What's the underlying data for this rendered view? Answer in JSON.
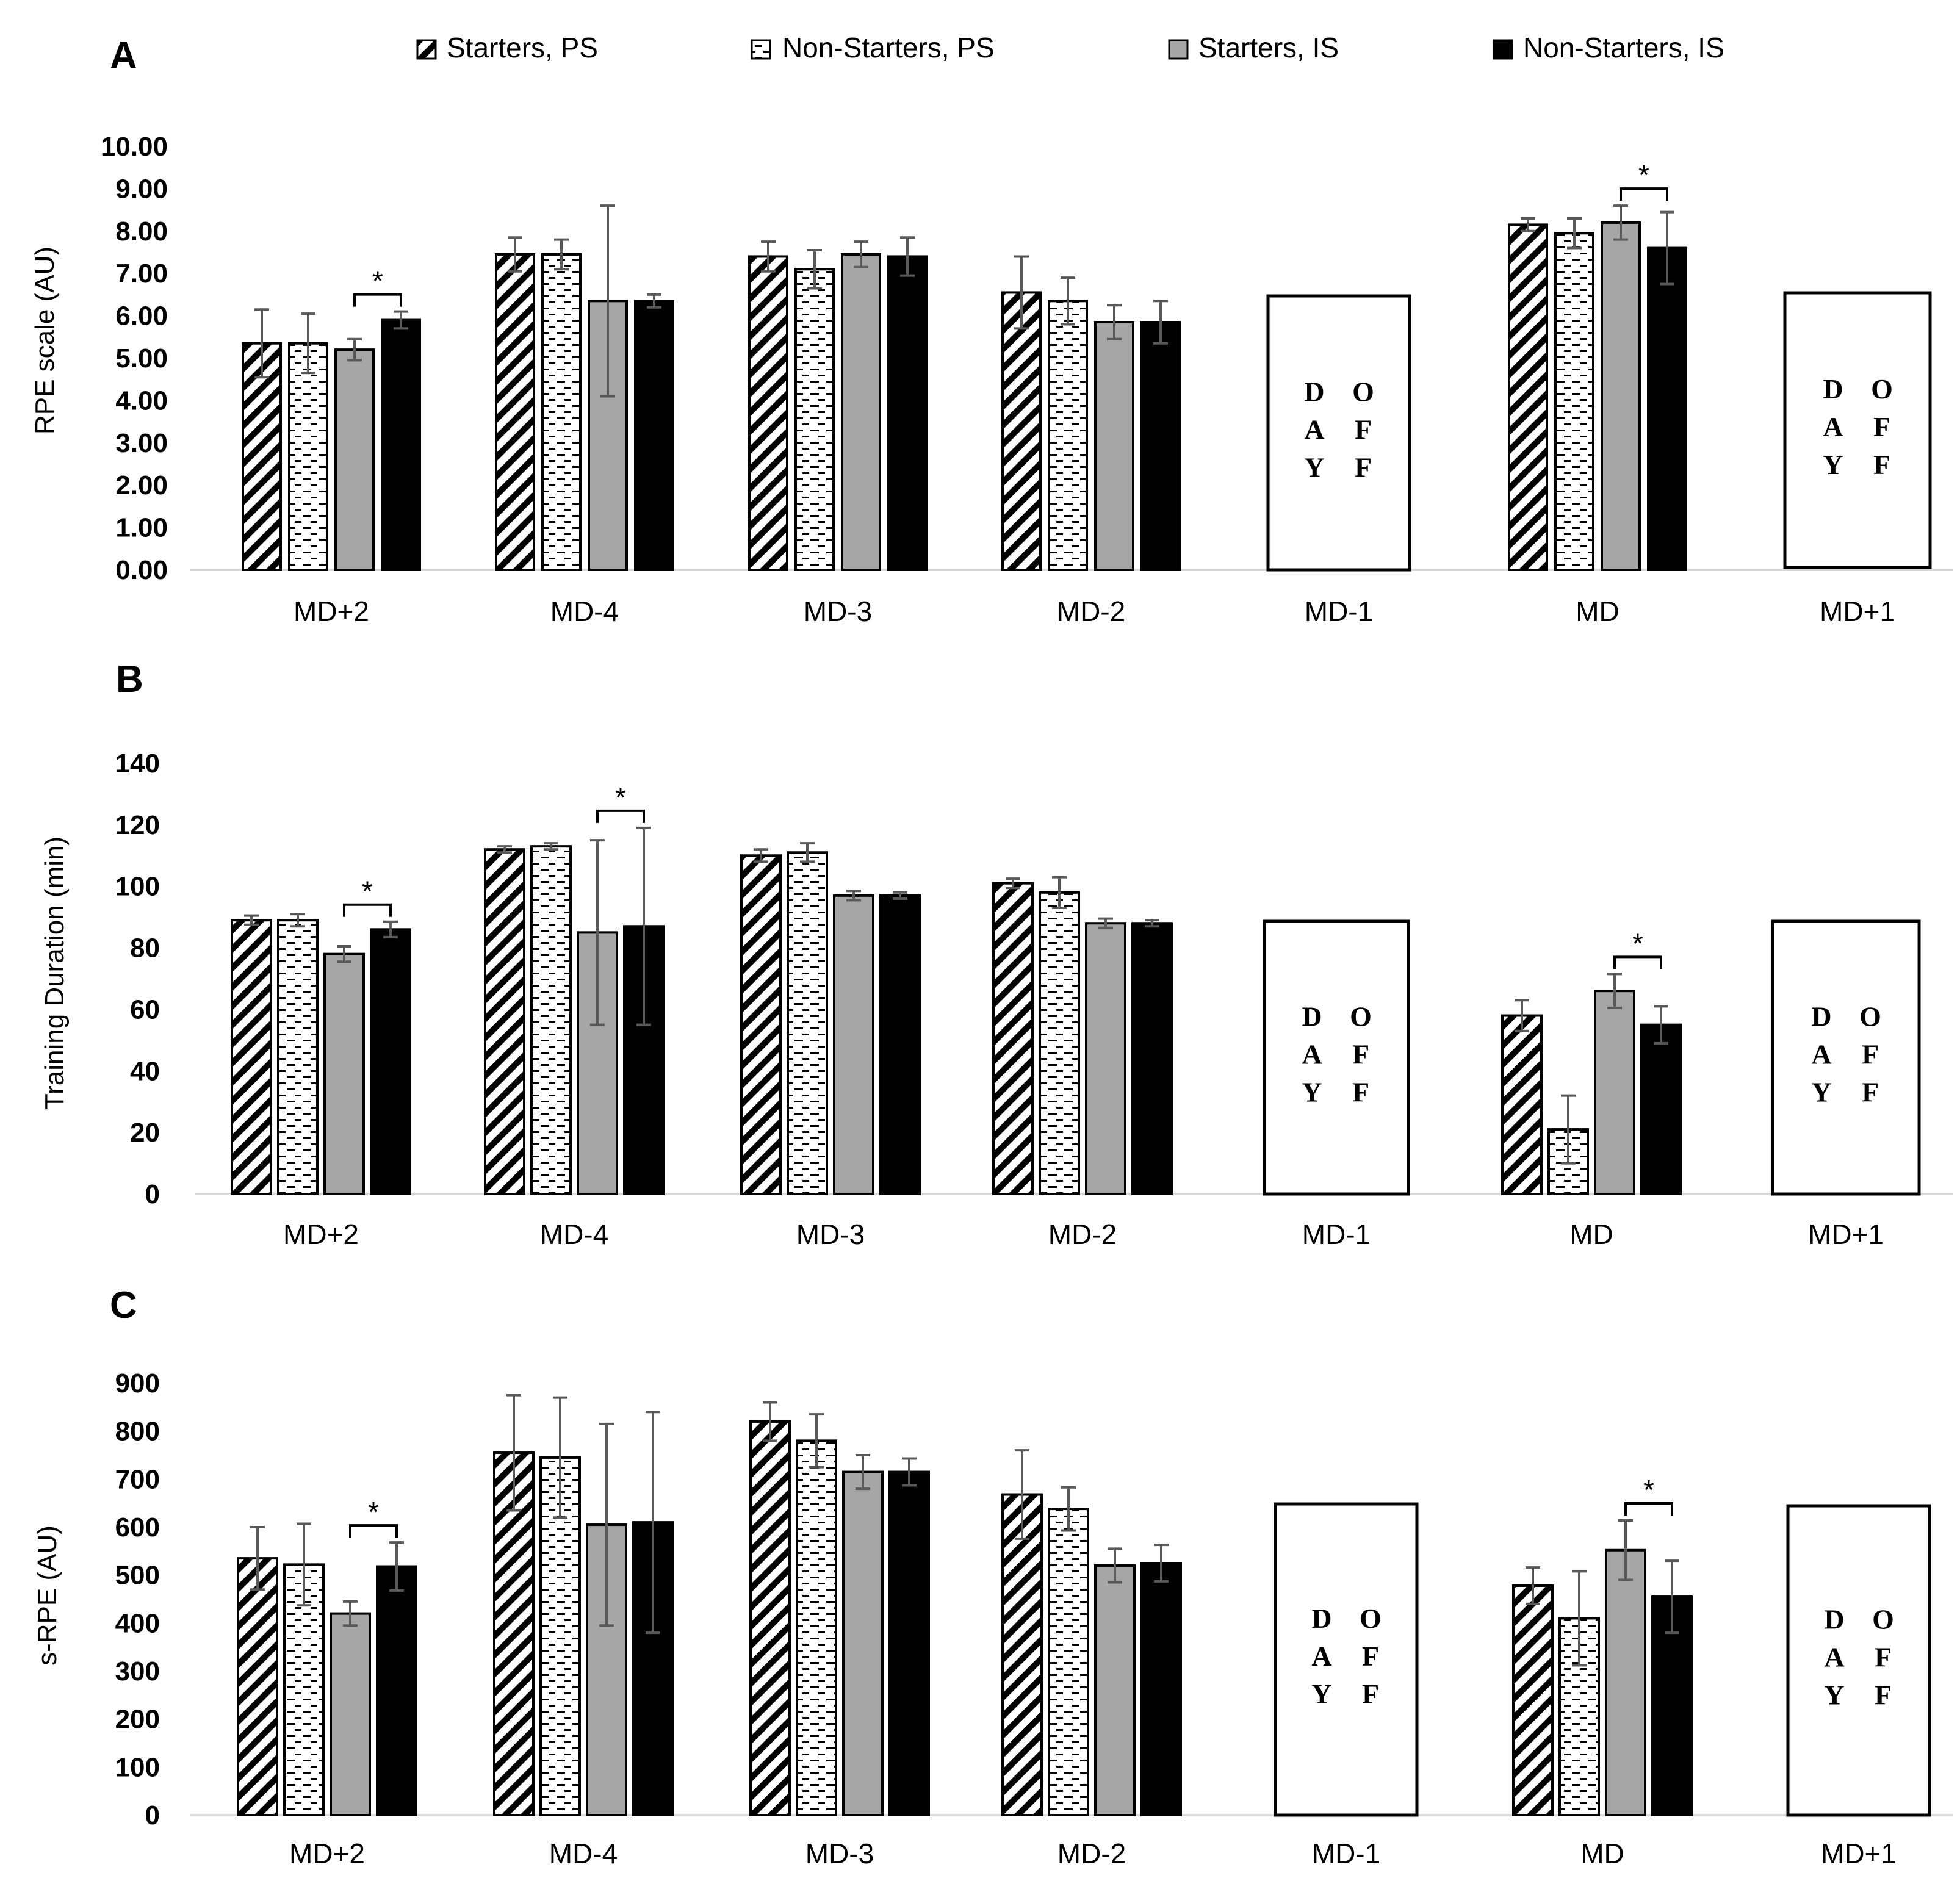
{
  "legend": {
    "items": [
      {
        "label": "Starters, PS",
        "pattern": "diag"
      },
      {
        "label": "Non-Starters, PS",
        "pattern": "dash"
      },
      {
        "label": "Starters, IS",
        "pattern": "gray"
      },
      {
        "label": "Non-Starters, IS",
        "pattern": "black"
      }
    ]
  },
  "colors": {
    "gray_bar": "#a6a6a6",
    "black_bar": "#000000",
    "error_bar": "#595959",
    "axis_line": "#d9d9d9"
  },
  "off_label": [
    "D",
    "O",
    "A",
    "F",
    "Y",
    "F"
  ],
  "chart_data": [
    {
      "type": "bar",
      "panel": "A",
      "ylabel": "RPE scale (AU)",
      "xlabel": "",
      "categories": [
        "MD+2",
        "MD-4",
        "MD-3",
        "MD-2",
        "MD-1",
        "MD",
        "MD+1"
      ],
      "ylim": [
        0,
        10
      ],
      "yticks": [
        "0.00",
        "1.00",
        "2.00",
        "3.00",
        "4.00",
        "5.00",
        "6.00",
        "7.00",
        "8.00",
        "9.00",
        "10.00"
      ],
      "day_off": [
        "MD-1",
        "MD+1"
      ],
      "series": [
        {
          "name": "Starters, PS",
          "values": [
            5.35,
            7.45,
            7.4,
            6.55,
            null,
            8.15,
            null
          ],
          "errors": [
            0.8,
            0.4,
            0.35,
            0.85,
            null,
            0.15,
            null
          ]
        },
        {
          "name": "Non-Starters, PS",
          "values": [
            5.35,
            7.45,
            7.1,
            6.35,
            null,
            7.95,
            null
          ],
          "errors": [
            0.7,
            0.35,
            0.45,
            0.55,
            null,
            0.35,
            null
          ]
        },
        {
          "name": "Starters, IS",
          "values": [
            5.2,
            6.35,
            7.45,
            5.85,
            null,
            8.2,
            null
          ],
          "errors": [
            0.25,
            2.25,
            0.3,
            0.4,
            null,
            0.4,
            null
          ]
        },
        {
          "name": "Non-Starters, IS",
          "values": [
            5.9,
            6.35,
            7.4,
            5.85,
            null,
            7.6,
            null
          ],
          "errors": [
            0.2,
            0.15,
            0.45,
            0.5,
            null,
            0.85,
            null
          ]
        }
      ],
      "significance": [
        {
          "category": "MD+2",
          "between": [
            "Starters, IS",
            "Non-Starters, IS"
          ],
          "label": "*"
        },
        {
          "category": "MD",
          "between": [
            "Starters, IS",
            "Non-Starters, IS"
          ],
          "label": "*"
        }
      ]
    },
    {
      "type": "bar",
      "panel": "B",
      "ylabel": "Training Duration (min)",
      "xlabel": "",
      "categories": [
        "MD+2",
        "MD-4",
        "MD-3",
        "MD-2",
        "MD-1",
        "MD",
        "MD+1"
      ],
      "ylim": [
        0,
        140
      ],
      "yticks": [
        "0",
        "20",
        "40",
        "60",
        "80",
        "100",
        "120",
        "140"
      ],
      "day_off": [
        "MD-1",
        "MD+1"
      ],
      "series": [
        {
          "name": "Starters, PS",
          "values": [
            89,
            112,
            110,
            101,
            null,
            58,
            null
          ],
          "errors": [
            1.5,
            1.0,
            2.0,
            1.5,
            null,
            5.0,
            null
          ]
        },
        {
          "name": "Non-Starters, PS",
          "values": [
            89,
            113,
            111,
            98,
            null,
            21,
            null
          ],
          "errors": [
            2.0,
            1.0,
            3.0,
            5.0,
            null,
            11.0,
            null
          ]
        },
        {
          "name": "Starters, IS",
          "values": [
            78,
            85,
            97,
            88,
            null,
            66,
            null
          ],
          "errors": [
            2.5,
            30.0,
            1.5,
            1.5,
            null,
            5.5,
            null
          ]
        },
        {
          "name": "Non-Starters, IS",
          "values": [
            86,
            87,
            97,
            88,
            null,
            55,
            null
          ],
          "errors": [
            2.5,
            32.0,
            1.0,
            1.0,
            null,
            6.0,
            null
          ]
        }
      ],
      "significance": [
        {
          "category": "MD+2",
          "between": [
            "Starters, IS",
            "Non-Starters, IS"
          ],
          "label": "*"
        },
        {
          "category": "MD-4",
          "between": [
            "Starters, IS",
            "Non-Starters, IS"
          ],
          "label": "*"
        },
        {
          "category": "MD",
          "between": [
            "Starters, IS",
            "Non-Starters, IS"
          ],
          "label": "*"
        }
      ]
    },
    {
      "type": "bar",
      "panel": "C",
      "ylabel": "s-RPE (AU)",
      "xlabel": "",
      "categories": [
        "MD+2",
        "MD-4",
        "MD-3",
        "MD-2",
        "MD-1",
        "MD",
        "MD+1"
      ],
      "ylim": [
        0,
        900
      ],
      "yticks": [
        "0",
        "100",
        "200",
        "300",
        "400",
        "500",
        "600",
        "700",
        "800",
        "900"
      ],
      "day_off": [
        "MD-1",
        "MD+1"
      ],
      "series": [
        {
          "name": "Starters, PS",
          "values": [
            535,
            755,
            820,
            668,
            null,
            478,
            null
          ],
          "errors": [
            65,
            120,
            40,
            92,
            null,
            38,
            null
          ]
        },
        {
          "name": "Non-Starters, PS",
          "values": [
            522,
            745,
            780,
            638,
            null,
            410,
            null
          ],
          "errors": [
            85,
            125,
            55,
            45,
            null,
            98,
            null
          ]
        },
        {
          "name": "Starters, IS",
          "values": [
            420,
            605,
            715,
            520,
            null,
            552,
            null
          ],
          "errors": [
            25,
            210,
            35,
            35,
            null,
            62,
            null
          ]
        },
        {
          "name": "Non-Starters, IS",
          "values": [
            518,
            610,
            715,
            525,
            null,
            455,
            null
          ],
          "errors": [
            50,
            230,
            28,
            38,
            null,
            75,
            null
          ]
        }
      ],
      "significance": [
        {
          "category": "MD+2",
          "between": [
            "Starters, IS",
            "Non-Starters, IS"
          ],
          "label": "*"
        },
        {
          "category": "MD",
          "between": [
            "Starters, IS",
            "Non-Starters, IS"
          ],
          "label": "*"
        }
      ]
    }
  ]
}
